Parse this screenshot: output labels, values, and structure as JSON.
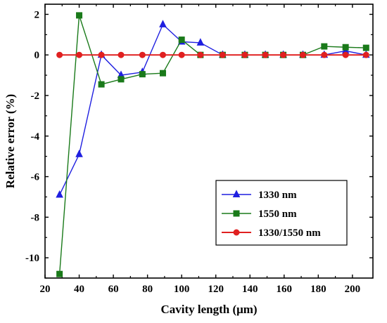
{
  "chart_data": {
    "type": "line",
    "title": "",
    "xlabel": "Cavity length (μm)",
    "ylabel": "Relative error (%)",
    "xlim": [
      20,
      212
    ],
    "ylim": [
      -11,
      2.5
    ],
    "xticks": [
      20,
      40,
      60,
      80,
      100,
      120,
      140,
      160,
      180,
      200
    ],
    "yticks": [
      2,
      0,
      -2,
      -4,
      -6,
      -8,
      -10
    ],
    "grid": false,
    "legend_position": "bottom-right",
    "series": [
      {
        "name": "1330 nm",
        "color": "#1f1fe0",
        "marker": "triangle",
        "x": [
          28.5,
          40,
          53,
          64.5,
          77,
          89,
          100,
          111,
          124,
          137,
          149,
          159.5,
          171,
          183.5,
          196,
          208
        ],
        "y": [
          -6.9,
          -4.9,
          0.0,
          -1.0,
          -0.85,
          1.5,
          0.65,
          0.6,
          0.0,
          0.0,
          0.0,
          0.0,
          0.0,
          0.0,
          0.2,
          0.0
        ]
      },
      {
        "name": "1550 nm",
        "color": "#1a7a1a",
        "marker": "square",
        "x": [
          28.5,
          40,
          53,
          64.5,
          77,
          89,
          100,
          111,
          124,
          137,
          149,
          159.5,
          171,
          183.5,
          196,
          208
        ],
        "y": [
          -10.8,
          1.95,
          -1.45,
          -1.2,
          -0.95,
          -0.9,
          0.75,
          0.0,
          0.0,
          0.0,
          0.0,
          0.0,
          0.0,
          0.42,
          0.38,
          0.35
        ]
      },
      {
        "name": "1330/1550 nm",
        "color": "#e02020",
        "marker": "circle",
        "x": [
          28.5,
          40,
          53,
          64.5,
          77,
          89,
          100,
          111,
          124,
          137,
          149,
          159.5,
          171,
          183.5,
          196,
          208
        ],
        "y": [
          0,
          0,
          0,
          0,
          0,
          0,
          0,
          0,
          0,
          0,
          0,
          0,
          0,
          0,
          0,
          0
        ]
      }
    ]
  }
}
